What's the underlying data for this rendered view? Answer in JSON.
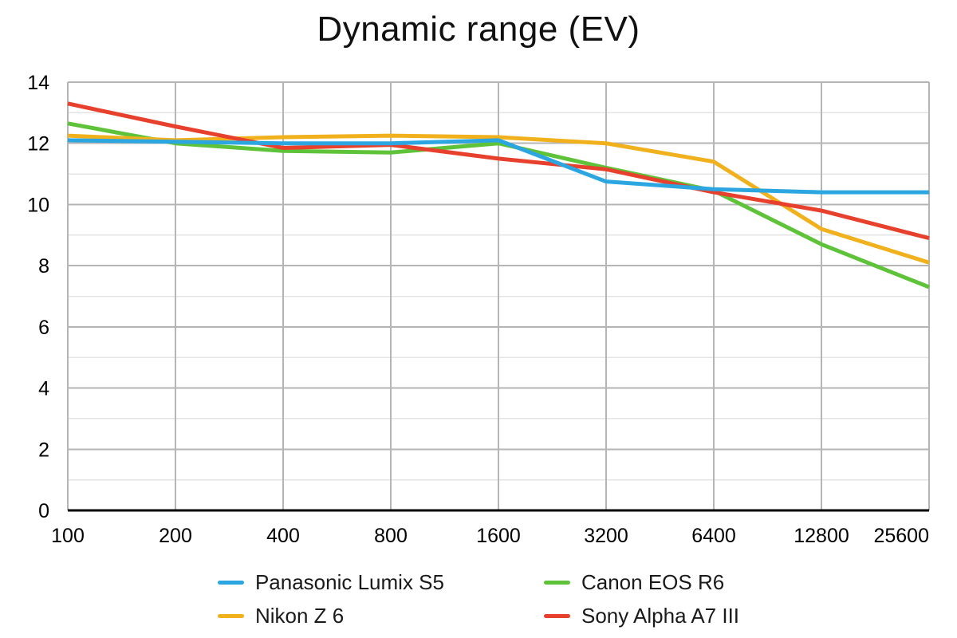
{
  "chart_data": {
    "type": "line",
    "title": "Dynamic range (EV)",
    "categories": [
      "100",
      "200",
      "400",
      "800",
      "1600",
      "3200",
      "6400",
      "12800",
      "25600"
    ],
    "ylim": [
      0,
      14
    ],
    "y_ticks": [
      0,
      2,
      4,
      6,
      8,
      10,
      12,
      14
    ],
    "y_minor_step": 1,
    "grid": true,
    "legend_position": "bottom",
    "series": [
      {
        "name": "Panasonic Lumix S5",
        "color": "#2BA6E0",
        "values": [
          12.1,
          12.05,
          12.0,
          12.0,
          12.1,
          10.75,
          10.5,
          10.4,
          10.4
        ]
      },
      {
        "name": "Canon EOS R6",
        "color": "#5EC339",
        "values": [
          12.65,
          12.0,
          11.75,
          11.7,
          12.0,
          11.2,
          10.45,
          8.7,
          7.3
        ]
      },
      {
        "name": "Nikon Z 6",
        "color": "#F0B11D",
        "values": [
          12.25,
          12.1,
          12.2,
          12.25,
          12.2,
          12.0,
          11.4,
          9.2,
          8.1
        ]
      },
      {
        "name": "Sony Alpha A7 III",
        "color": "#E7402D",
        "values": [
          13.3,
          12.55,
          11.85,
          11.95,
          11.5,
          11.15,
          10.4,
          9.8,
          8.9
        ]
      }
    ]
  },
  "style": {
    "grid_major_color": "#b5b5b5",
    "grid_minor_color": "#e4e4e4",
    "axis_color": "#000000"
  }
}
